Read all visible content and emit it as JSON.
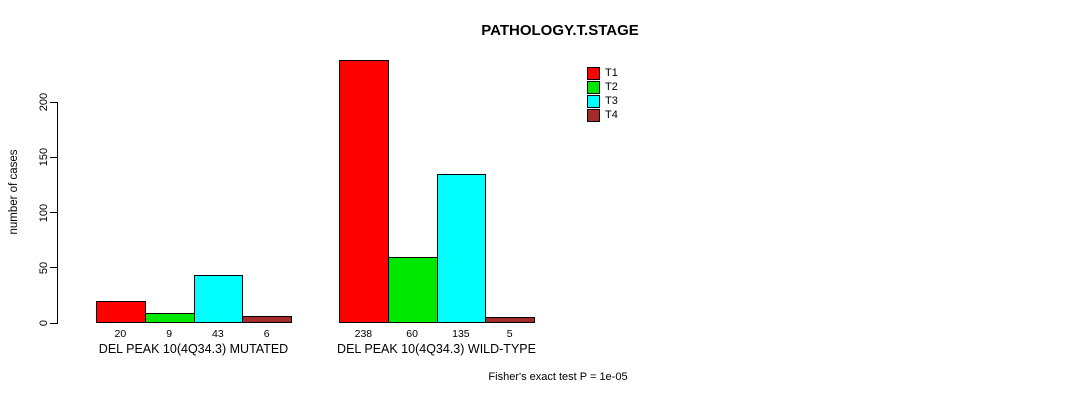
{
  "chart_data": {
    "type": "bar",
    "title": "PATHOLOGY.T.STAGE",
    "xlabel": "",
    "ylabel": "number of cases",
    "yticks": [
      0,
      50,
      100,
      150,
      200
    ],
    "ylim": [
      0,
      240
    ],
    "grid": false,
    "legend_position": "top-right",
    "categories": [
      "DEL PEAK 10(4Q34.3) MUTATED",
      "DEL PEAK 10(4Q34.3) WILD-TYPE"
    ],
    "series": [
      {
        "name": "T1",
        "color": "#FF0000",
        "values": [
          20,
          238
        ]
      },
      {
        "name": "T2",
        "color": "#00E800",
        "values": [
          9,
          60
        ]
      },
      {
        "name": "T3",
        "color": "#00FFFF",
        "values": [
          43,
          135
        ]
      },
      {
        "name": "T4",
        "color": "#A52A2A",
        "values": [
          6,
          5
        ]
      }
    ],
    "bar_value_labels": true,
    "annotation": "Fisher's exact test P = 1e-05"
  }
}
